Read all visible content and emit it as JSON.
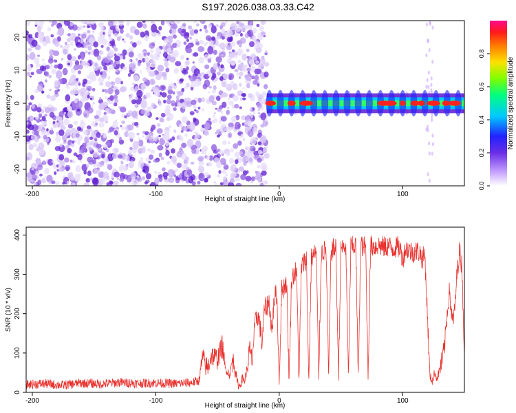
{
  "page_title": "S197.2026.038.03.33.C42",
  "chart_data": [
    {
      "type": "heatmap",
      "name": "spectrogram",
      "xlabel": "Height of straight line (km)",
      "ylabel": "Frequency (Hz)",
      "xlim": [
        -205,
        150
      ],
      "ylim": [
        -25,
        25
      ],
      "xticks": [
        -200,
        -100,
        0,
        100
      ],
      "xtick_labels": [
        "-200",
        "-100",
        "0",
        "100"
      ],
      "yticks": [
        -20,
        -10,
        0,
        10,
        20
      ],
      "ytick_labels": [
        "-20",
        "-10",
        "0",
        "10",
        "20"
      ],
      "noise_region_km": [
        -205,
        -10
      ],
      "signal_region_km": [
        -10,
        150
      ],
      "signal_frequency_hz": 0,
      "signal_band_halfwidth_hz": 1,
      "colorbar": {
        "label": "Normalized spectral amplitude",
        "range": [
          0,
          1
        ],
        "ticks": [
          0.0,
          0.2,
          0.4,
          0.6,
          0.8
        ],
        "tick_labels": [
          "0.0",
          "0.2",
          "0.4",
          "0.6",
          "0.8"
        ],
        "colormap": [
          "#ffffff",
          "#8a2be2",
          "#0000ff",
          "#00ffff",
          "#00ff00",
          "#ffff00",
          "#ff0000",
          "#ff00aa"
        ]
      }
    },
    {
      "type": "line",
      "name": "snr",
      "xlabel": "Height of straight line (km)",
      "ylabel": "SNR (10 * v/v)",
      "xlim": [
        -205,
        150
      ],
      "ylim": [
        0,
        420
      ],
      "xticks": [
        -200,
        -100,
        0,
        100
      ],
      "xtick_labels": [
        "-200",
        "-100",
        "0",
        "100"
      ],
      "yticks": [
        0,
        100,
        200,
        300,
        400
      ],
      "ytick_labels": [
        "0",
        "100",
        "200",
        "300",
        "400"
      ],
      "color": "#e8322e",
      "x": [
        -205,
        -190,
        -175,
        -160,
        -145,
        -130,
        -115,
        -100,
        -85,
        -70,
        -65,
        -62,
        -60,
        -58,
        -55,
        -50,
        -46,
        -44,
        -42,
        -40,
        -38,
        -36,
        -34,
        -32,
        -30,
        -28,
        -26,
        -24,
        -22,
        -20,
        -18,
        -16,
        -14,
        -12,
        -10,
        -8,
        -6,
        -4,
        -2,
        0,
        2,
        4,
        6,
        8,
        10,
        12,
        14,
        16,
        18,
        20,
        22,
        24,
        26,
        28,
        30,
        32,
        34,
        36,
        38,
        40,
        42,
        44,
        46,
        48,
        50,
        52,
        54,
        56,
        58,
        60,
        62,
        64,
        66,
        68,
        70,
        72,
        74,
        76,
        78,
        80,
        82,
        84,
        86,
        88,
        90,
        92,
        94,
        96,
        98,
        100,
        102,
        104,
        106,
        108,
        110,
        112,
        114,
        116,
        118,
        120,
        122,
        124,
        126,
        128,
        130,
        132,
        134,
        136,
        138,
        140,
        142,
        144,
        146,
        148,
        150
      ],
      "y": [
        20,
        22,
        18,
        24,
        21,
        25,
        23,
        24,
        22,
        25,
        30,
        90,
        70,
        60,
        95,
        85,
        120,
        60,
        55,
        45,
        80,
        70,
        25,
        15,
        35,
        30,
        60,
        110,
        80,
        160,
        200,
        180,
        120,
        210,
        220,
        230,
        150,
        240,
        250,
        30,
        260,
        270,
        280,
        30,
        290,
        300,
        310,
        35,
        320,
        330,
        340,
        30,
        340,
        350,
        355,
        35,
        355,
        360,
        360,
        40,
        360,
        365,
        365,
        40,
        370,
        365,
        370,
        40,
        370,
        370,
        375,
        40,
        375,
        370,
        372,
        40,
        372,
        372,
        370,
        375,
        372,
        370,
        368,
        372,
        370,
        365,
        368,
        370,
        365,
        340,
        362,
        365,
        360,
        355,
        358,
        360,
        355,
        340,
        350,
        200,
        40,
        30,
        50,
        35,
        60,
        80,
        120,
        200,
        260,
        180,
        200,
        300,
        360,
        320,
        100
      ]
    }
  ]
}
